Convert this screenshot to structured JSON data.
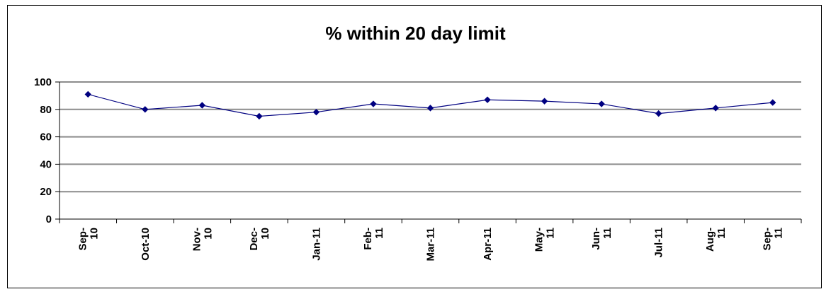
{
  "chart_data": {
    "type": "line",
    "title": "% within 20 day limit",
    "xlabel": "",
    "ylabel": "",
    "ylim": [
      0,
      100
    ],
    "y_ticks": [
      "0",
      "20",
      "40",
      "60",
      "80",
      "100"
    ],
    "grid": true,
    "legend": "none",
    "line_color": "#000080",
    "categories": [
      [
        "Sep-",
        "10"
      ],
      [
        "Oct-10"
      ],
      [
        "Nov-",
        "10"
      ],
      [
        "Dec-",
        "10"
      ],
      [
        "Jan-11"
      ],
      [
        "Feb-",
        "11"
      ],
      [
        "Mar-11"
      ],
      [
        "Apr-11"
      ],
      [
        "May-",
        "11"
      ],
      [
        "Jun-",
        "11"
      ],
      [
        "Jul-11"
      ],
      [
        "Aug-",
        "11"
      ],
      [
        "Sep-",
        "11"
      ]
    ],
    "values": [
      91,
      80,
      83,
      75,
      78,
      84,
      81,
      87,
      86,
      84,
      77,
      81,
      85
    ]
  }
}
